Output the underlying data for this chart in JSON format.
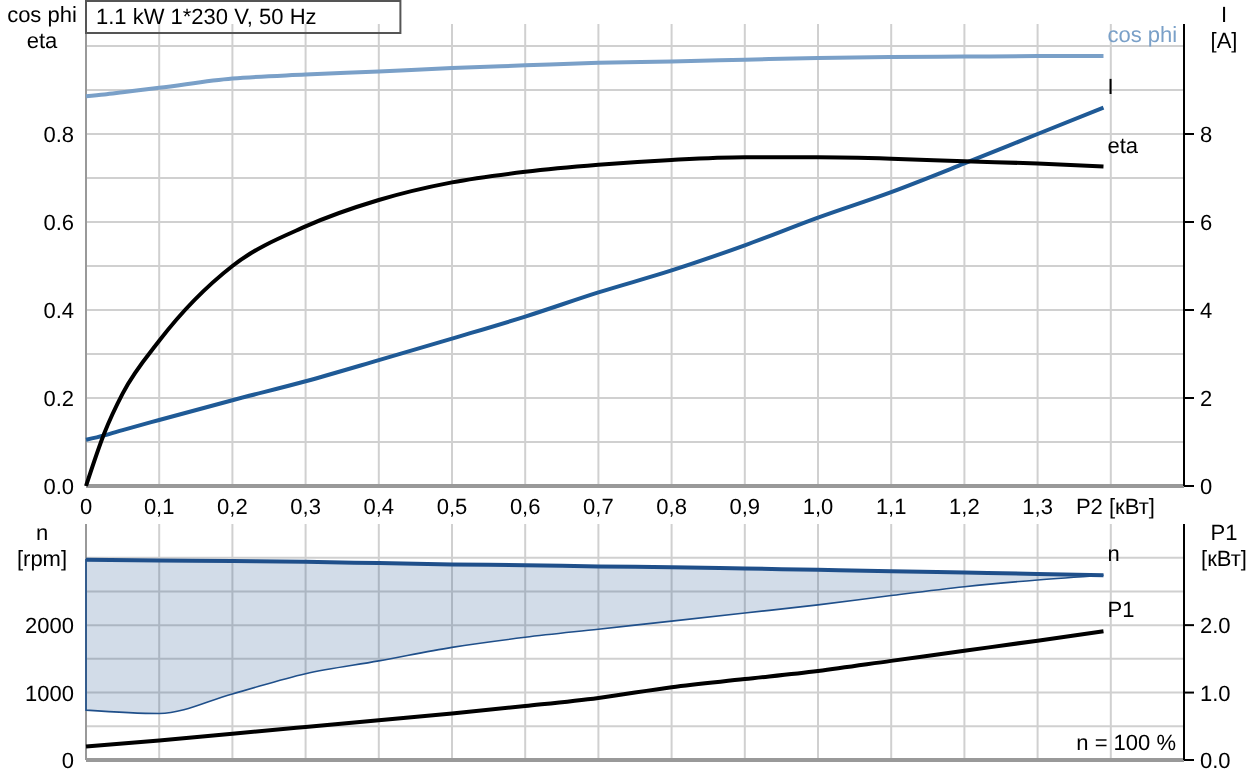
{
  "chart_data": [
    {
      "type": "line",
      "title": "1.1 kW   1*230 V, 50 Hz",
      "xlabel": "P2 [кВт]",
      "ylabel": "cos phi\neta",
      "y2label": "I\n[A]",
      "grid": true,
      "x": [
        0,
        0.025,
        0.05,
        0.1,
        0.2,
        0.3,
        0.4,
        0.5,
        0.6,
        0.7,
        0.8,
        0.9,
        1.0,
        1.1,
        1.2,
        1.3,
        1.39
      ],
      "xlim": [
        0,
        1.5
      ],
      "xticks": [
        0,
        {
          "value": 0.1,
          "label": "0,1"
        },
        {
          "value": 0.2,
          "label": "0,2"
        },
        {
          "value": 0.3,
          "label": "0,3"
        },
        {
          "value": 0.4,
          "label": "0,4"
        },
        {
          "value": 0.5,
          "label": "0,5"
        },
        {
          "value": 0.6,
          "label": "0,6"
        },
        {
          "value": 0.7,
          "label": "0,7"
        },
        {
          "value": 0.8,
          "label": "0,8"
        },
        {
          "value": 0.9,
          "label": "0,9"
        },
        {
          "value": 1.0,
          "label": "1,0"
        },
        {
          "value": 1.1,
          "label": "1,1"
        },
        {
          "value": 1.2,
          "label": "1,2"
        },
        {
          "value": 1.3,
          "label": "1,3"
        },
        {
          "value": 1.4,
          "label": null
        }
      ],
      "ylim": [
        0,
        1.05
      ],
      "yticks": [
        {
          "value": 0,
          "label": "0.0"
        },
        {
          "value": 0.1,
          "label": null
        },
        0.2,
        {
          "value": 0.3,
          "label": null
        },
        0.4,
        {
          "value": 0.5,
          "label": null
        },
        0.6,
        {
          "value": 0.7,
          "label": null
        },
        0.8,
        {
          "value": 0.9,
          "label": null
        },
        {
          "value": 1.0,
          "label": null
        }
      ],
      "y2lim": [
        0,
        10.5
      ],
      "y2ticks": [
        0,
        2,
        4,
        6,
        8
      ],
      "series": [
        {
          "name": "cos phi",
          "color": "#7aa0c8",
          "values": [
            0.886,
            0.89,
            0.895,
            0.905,
            0.926,
            0.935,
            0.942,
            0.95,
            0.956,
            0.962,
            0.965,
            0.969,
            0.973,
            0.975,
            0.976,
            0.977,
            0.977
          ]
        },
        {
          "name": "I",
          "color": "#1f5a96",
          "axis": "y2",
          "values": [
            1.05,
            1.15,
            1.27,
            1.5,
            1.95,
            2.38,
            2.86,
            3.35,
            3.85,
            4.4,
            4.9,
            5.47,
            6.1,
            6.68,
            7.33,
            8.0,
            8.6
          ]
        },
        {
          "name": "eta",
          "color": "#000000",
          "values": [
            0,
            0.12,
            0.21,
            0.33,
            0.5,
            0.59,
            0.65,
            0.69,
            0.714,
            0.73,
            0.741,
            0.747,
            0.747,
            0.744,
            0.738,
            0.733,
            0.726
          ]
        }
      ]
    },
    {
      "type": "line",
      "ylabel": "n\n[rpm]",
      "y2label": "P1\n[кВт]",
      "grid": true,
      "tick_labels": "y",
      "x": [
        0,
        0.1,
        0.2,
        0.3,
        0.4,
        0.5,
        0.6,
        0.7,
        0.8,
        0.9,
        1.0,
        1.1,
        1.2,
        1.3,
        1.39
      ],
      "xlim": [
        0,
        1.5
      ],
      "xticks": [
        0,
        0.1,
        0.2,
        0.3,
        0.4,
        0.5,
        0.6,
        0.7,
        0.8,
        0.9,
        1.0,
        1.1,
        1.2,
        1.3,
        1.4
      ],
      "ylim": [
        0,
        3500
      ],
      "yticks": [
        0,
        {
          "value": 500,
          "label": null
        },
        1000,
        {
          "value": 1500,
          "label": null
        },
        2000,
        {
          "value": 2500,
          "label": null
        },
        {
          "value": 3000,
          "label": null
        }
      ],
      "y2lim": [
        0,
        3.5
      ],
      "y2ticks": [
        {
          "value": 0,
          "label": "0.0"
        },
        {
          "value": 1,
          "label": "1.0"
        },
        {
          "value": 2,
          "label": "2.0"
        }
      ],
      "annotations": [
        "n = 100 %"
      ],
      "series": [
        {
          "name": "n",
          "color": "#1f4f8a",
          "values": [
            2970,
            2960,
            2950,
            2940,
            2920,
            2900,
            2890,
            2870,
            2860,
            2840,
            2820,
            2800,
            2780,
            2760,
            2740
          ],
          "lower": [
            740,
            690,
            980,
            1280,
            1470,
            1670,
            1820,
            1940,
            2060,
            2180,
            2300,
            2440,
            2570,
            2670,
            2740
          ],
          "upper": [
            2970,
            2960,
            2950,
            2940,
            2920,
            2900,
            2890,
            2870,
            2860,
            2840,
            2820,
            2800,
            2780,
            2760,
            2740
          ]
        },
        {
          "name": "P1",
          "color": "#000000",
          "axis": "y2",
          "values": [
            0.2,
            0.29,
            0.39,
            0.49,
            0.59,
            0.69,
            0.8,
            0.92,
            1.08,
            1.2,
            1.32,
            1.47,
            1.62,
            1.77,
            1.91
          ]
        }
      ]
    }
  ]
}
